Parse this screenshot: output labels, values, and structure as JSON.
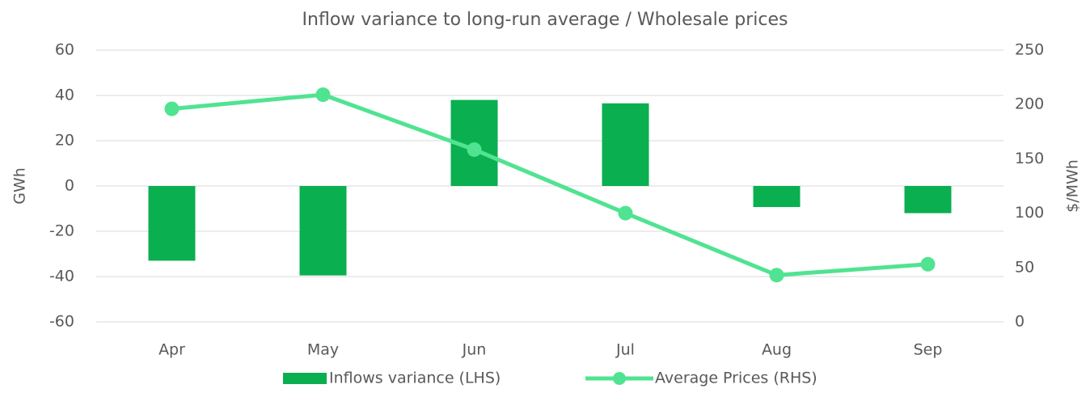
{
  "chart_data": {
    "type": "bar_line",
    "title": "Inflow variance to long-run average / Wholesale prices",
    "categories": [
      "Apr",
      "May",
      "Jun",
      "Jul",
      "Aug",
      "Sep"
    ],
    "series": [
      {
        "name": "Inflows variance (LHS)",
        "type": "bar",
        "color": "#0aaf50",
        "values": [
          -33,
          -39.5,
          38,
          36.5,
          -9.3,
          -12
        ]
      },
      {
        "name": "Average Prices (RHS)",
        "type": "line",
        "axis": "y2",
        "color": "#50e391",
        "values": [
          196,
          209,
          158.5,
          100,
          43,
          53
        ]
      }
    ],
    "ylabel": "GWh",
    "y2label": "$/MWh",
    "ylim": [
      -60,
      60
    ],
    "yticks": [
      -60,
      -40,
      -20,
      0,
      20,
      40,
      60
    ],
    "y2lim": [
      0,
      250
    ],
    "y2ticks": [
      0,
      50,
      100,
      150,
      200,
      250
    ],
    "grid": true,
    "legend": "bottom"
  }
}
